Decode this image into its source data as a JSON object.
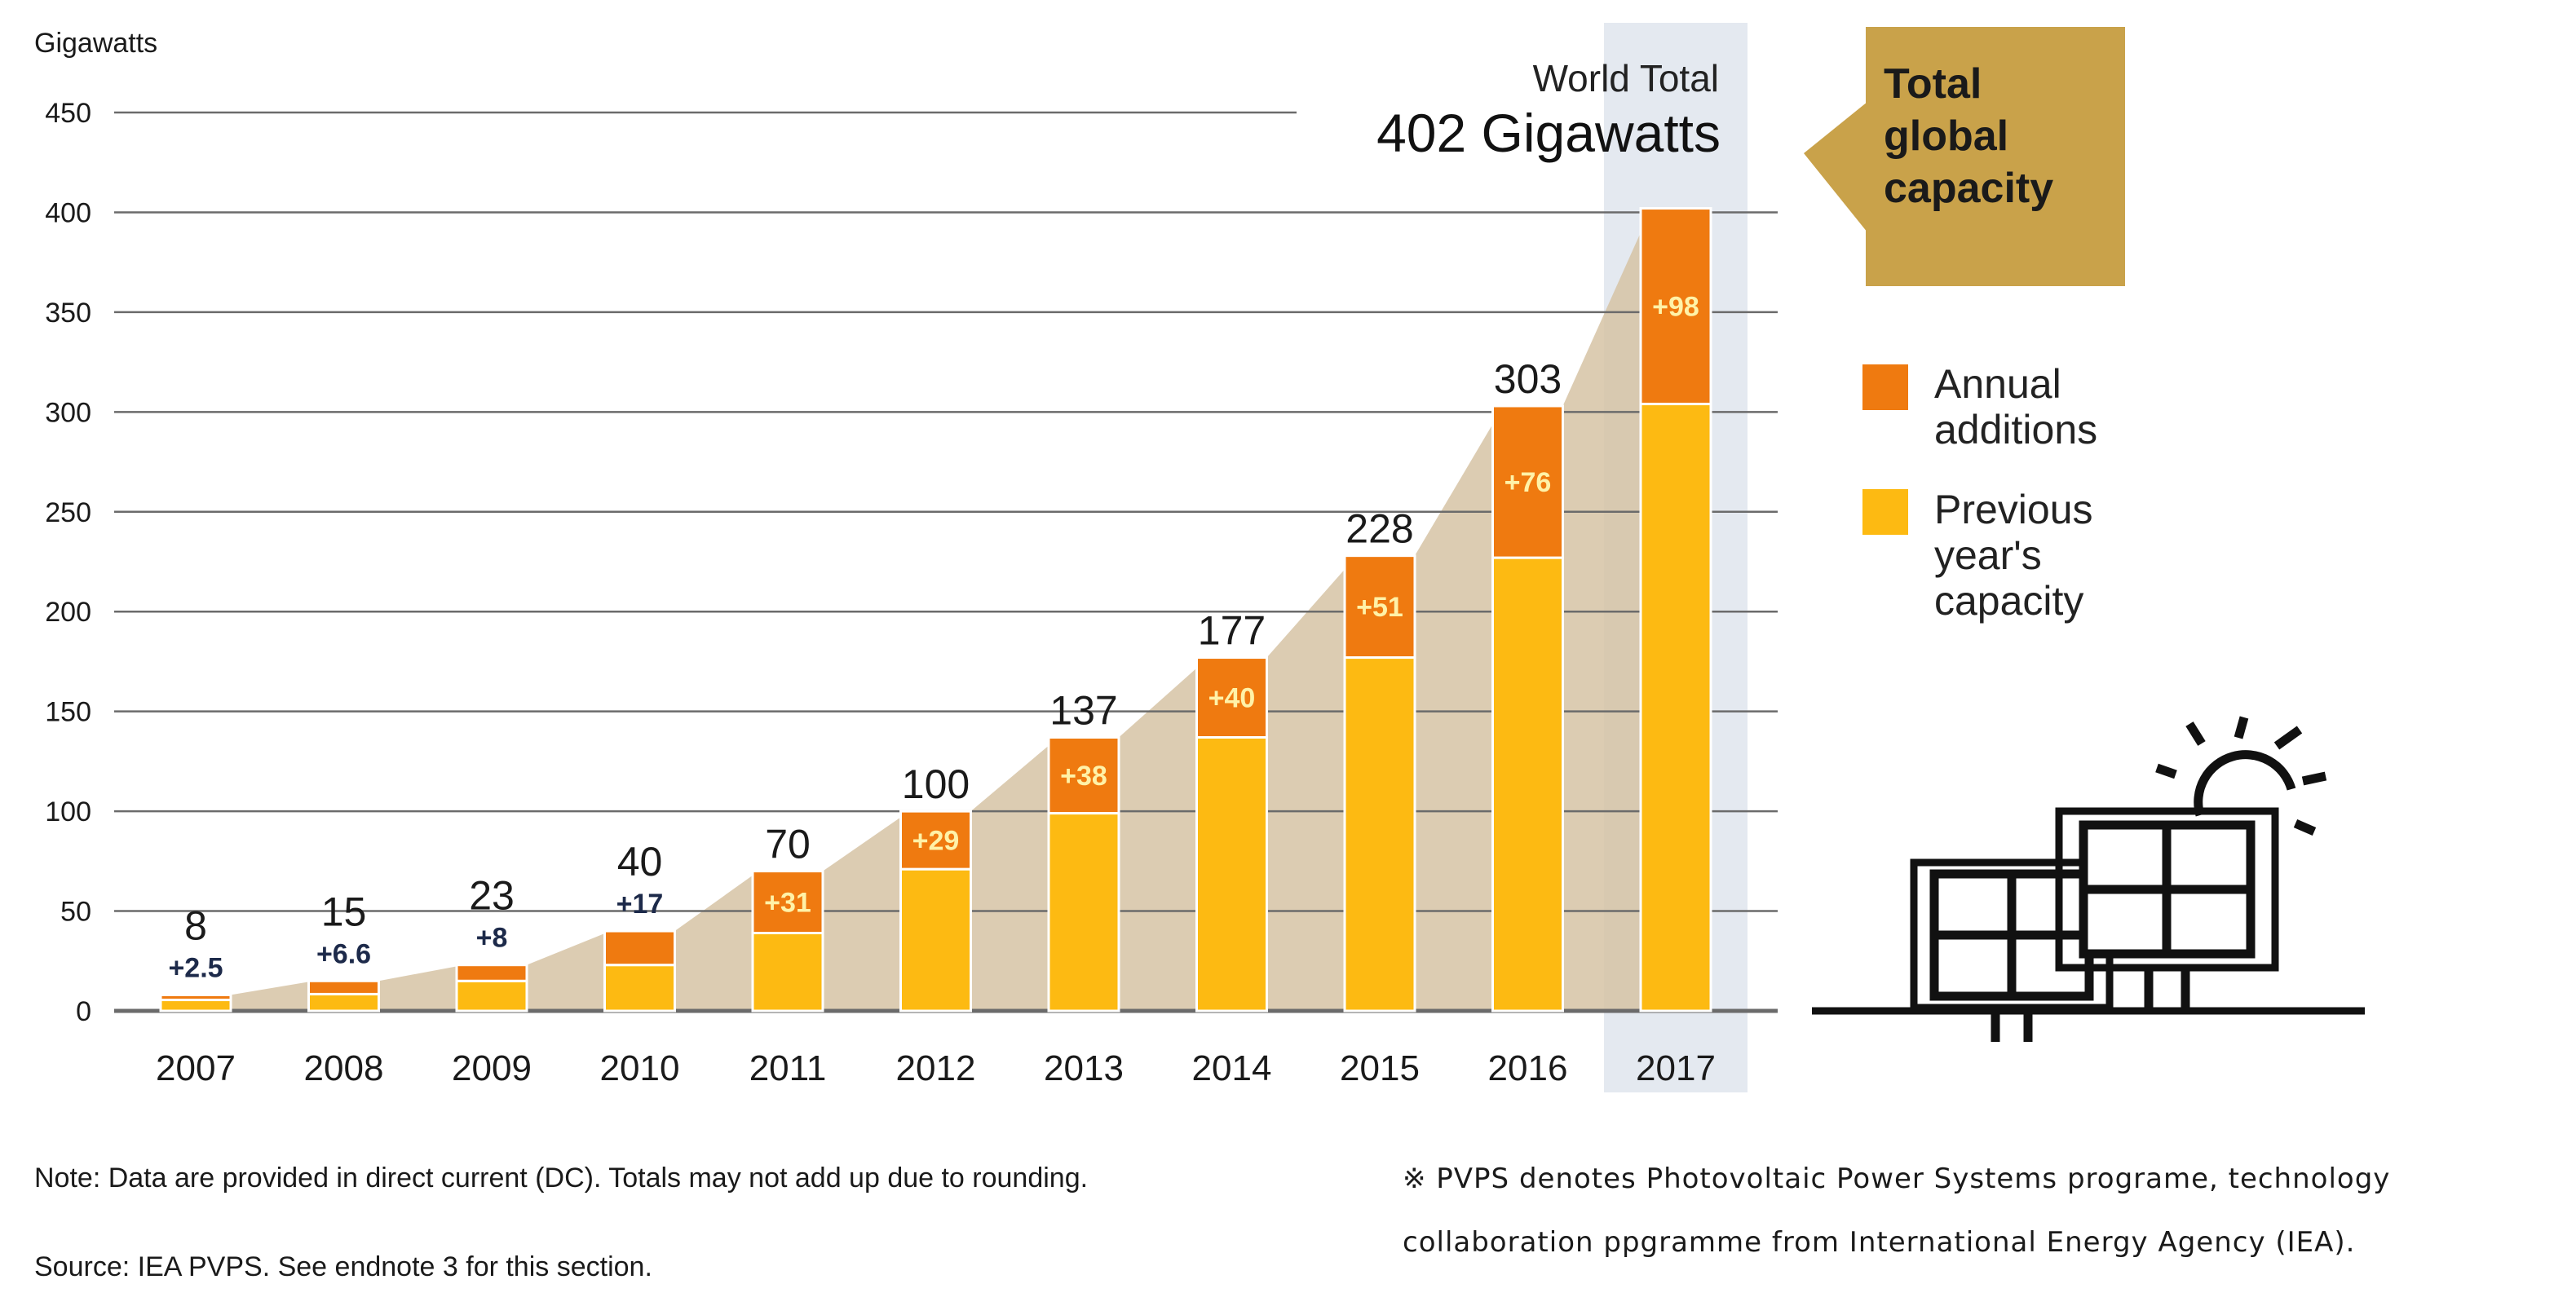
{
  "colors": {
    "previous": "#FDBA12",
    "annual": "#EF7A10",
    "area": "#D6C3A5",
    "highlight": "#E4E9F0",
    "callout": "#C9A24A",
    "grid": "#6b6b6b"
  },
  "chart_data": {
    "type": "bar",
    "stacked": true,
    "ylabel": "Gigawatts",
    "ylim": [
      0,
      450
    ],
    "yticks": [
      0,
      50,
      100,
      150,
      200,
      250,
      300,
      350,
      400,
      450
    ],
    "categories": [
      "2007",
      "2008",
      "2009",
      "2010",
      "2011",
      "2012",
      "2013",
      "2014",
      "2015",
      "2016",
      "2017"
    ],
    "series": [
      {
        "name": "Previous year's capacity",
        "values": [
          5.5,
          8.4,
          15,
          23,
          39,
          71,
          99,
          137,
          177,
          227,
          304
        ]
      },
      {
        "name": "Annual additions",
        "values": [
          2.5,
          6.6,
          8,
          17,
          31,
          29,
          38,
          40,
          51,
          76,
          98
        ]
      }
    ],
    "totals": [
      "8",
      "15",
      "23",
      "40",
      "70",
      "100",
      "137",
      "177",
      "228",
      "303",
      ""
    ],
    "addition_labels": [
      "+2.5",
      "+6.6",
      "+8",
      "+17",
      "+31",
      "+29",
      "+38",
      "+40",
      "+51",
      "+76",
      "+98"
    ],
    "highlight_category": "2017",
    "world_total_label": "World Total",
    "world_total_value": "402 Gigawatts",
    "callout_lines": [
      "Total",
      "global",
      "capacity"
    ],
    "legend": [
      {
        "key": "annual",
        "lines": [
          "Annual",
          "additions"
        ]
      },
      {
        "key": "previous",
        "lines": [
          "Previous",
          "year's",
          "capacity"
        ]
      }
    ]
  },
  "footer": {
    "note": "Note: Data are provided in direct current (DC). Totals may not add up due to rounding.",
    "source": "Source: IEA PVPS. See endnote 3 for this section.",
    "pvps_line1": "※ PVPS denotes Photovoltaic Power Systems programe, technology",
    "pvps_line2": "collaboration ppgramme from International Energy Agency (IEA)."
  },
  "illustration": "solar-panels-with-sun-icon"
}
